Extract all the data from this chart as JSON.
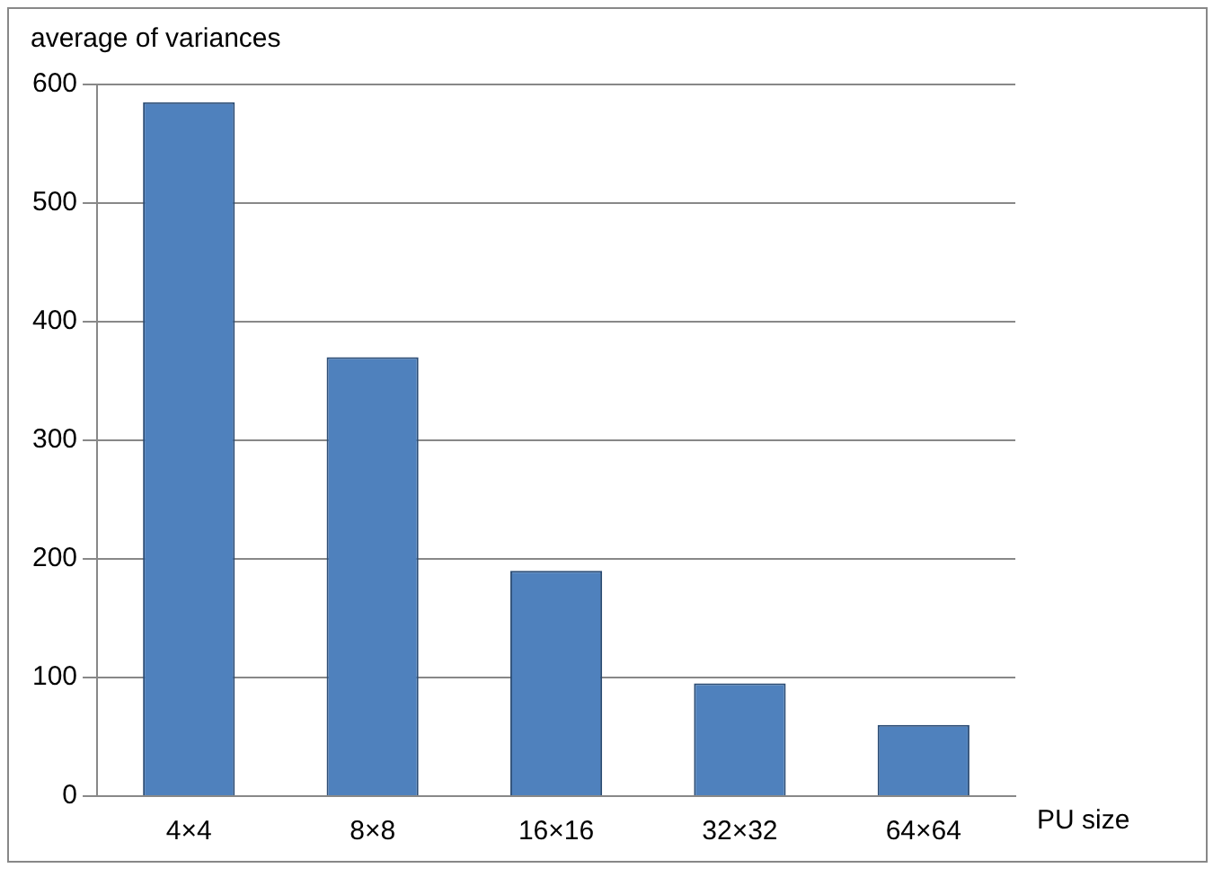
{
  "chart_data": {
    "type": "bar",
    "ylabel": "average of variances",
    "xlabel": "PU size",
    "categories": [
      "4×4",
      "8×8",
      "16×16",
      "32×32",
      "64×64"
    ],
    "values": [
      585,
      370,
      190,
      95,
      60
    ],
    "color": "#4f81bd",
    "ylim": [
      0,
      600
    ],
    "yticks": [
      0,
      100,
      200,
      300,
      400,
      500,
      600
    ],
    "grid": "y",
    "legend": false
  }
}
